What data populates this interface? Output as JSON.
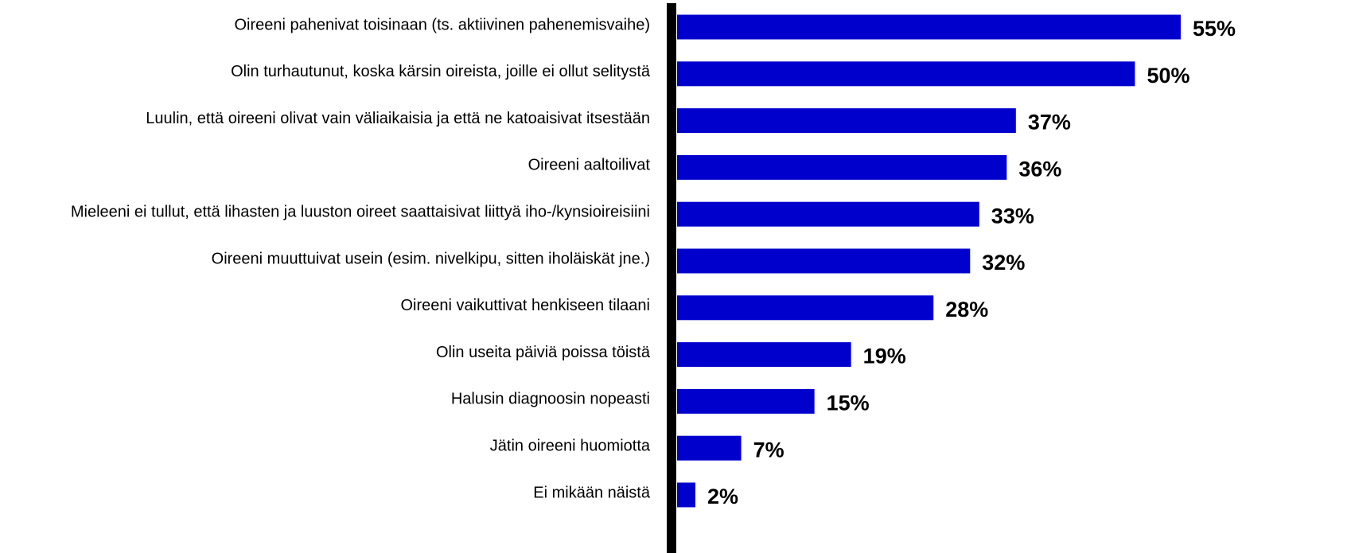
{
  "chart_data": {
    "type": "bar",
    "orientation": "horizontal",
    "categories": [
      "Oireeni pahenivat toisinaan (ts. aktiivinen pahenemisvaihe)",
      "Olin turhautunut, koska kärsin oireista, joille ei ollut selitystä",
      "Luulin, että oireeni olivat vain väliaikaisia ja että ne katoaisivat itsestään",
      "Oireeni aaltoilivat",
      "Mieleeni ei tullut, että lihasten ja luuston oireet saattaisivat liittyä iho-/kynsioireisiini",
      "Oireeni muuttuivat usein (esim. nivelkipu, sitten iholäiskät jne.)",
      "Oireeni vaikuttivat henkiseen tilaani",
      "Olin useita päiviä poissa töistä",
      "Halusin diagnoosin nopeasti",
      "Jätin oireeni huomiotta",
      "Ei mikään näistä"
    ],
    "values": [
      55,
      50,
      37,
      36,
      33,
      32,
      28,
      19,
      15,
      7,
      2
    ],
    "value_labels": [
      "55%",
      "50%",
      "37%",
      "36%",
      "33%",
      "32%",
      "28%",
      "19%",
      "15%",
      "7%",
      "2%"
    ],
    "color": "#0000cc",
    "xlim": [
      0,
      55
    ]
  }
}
